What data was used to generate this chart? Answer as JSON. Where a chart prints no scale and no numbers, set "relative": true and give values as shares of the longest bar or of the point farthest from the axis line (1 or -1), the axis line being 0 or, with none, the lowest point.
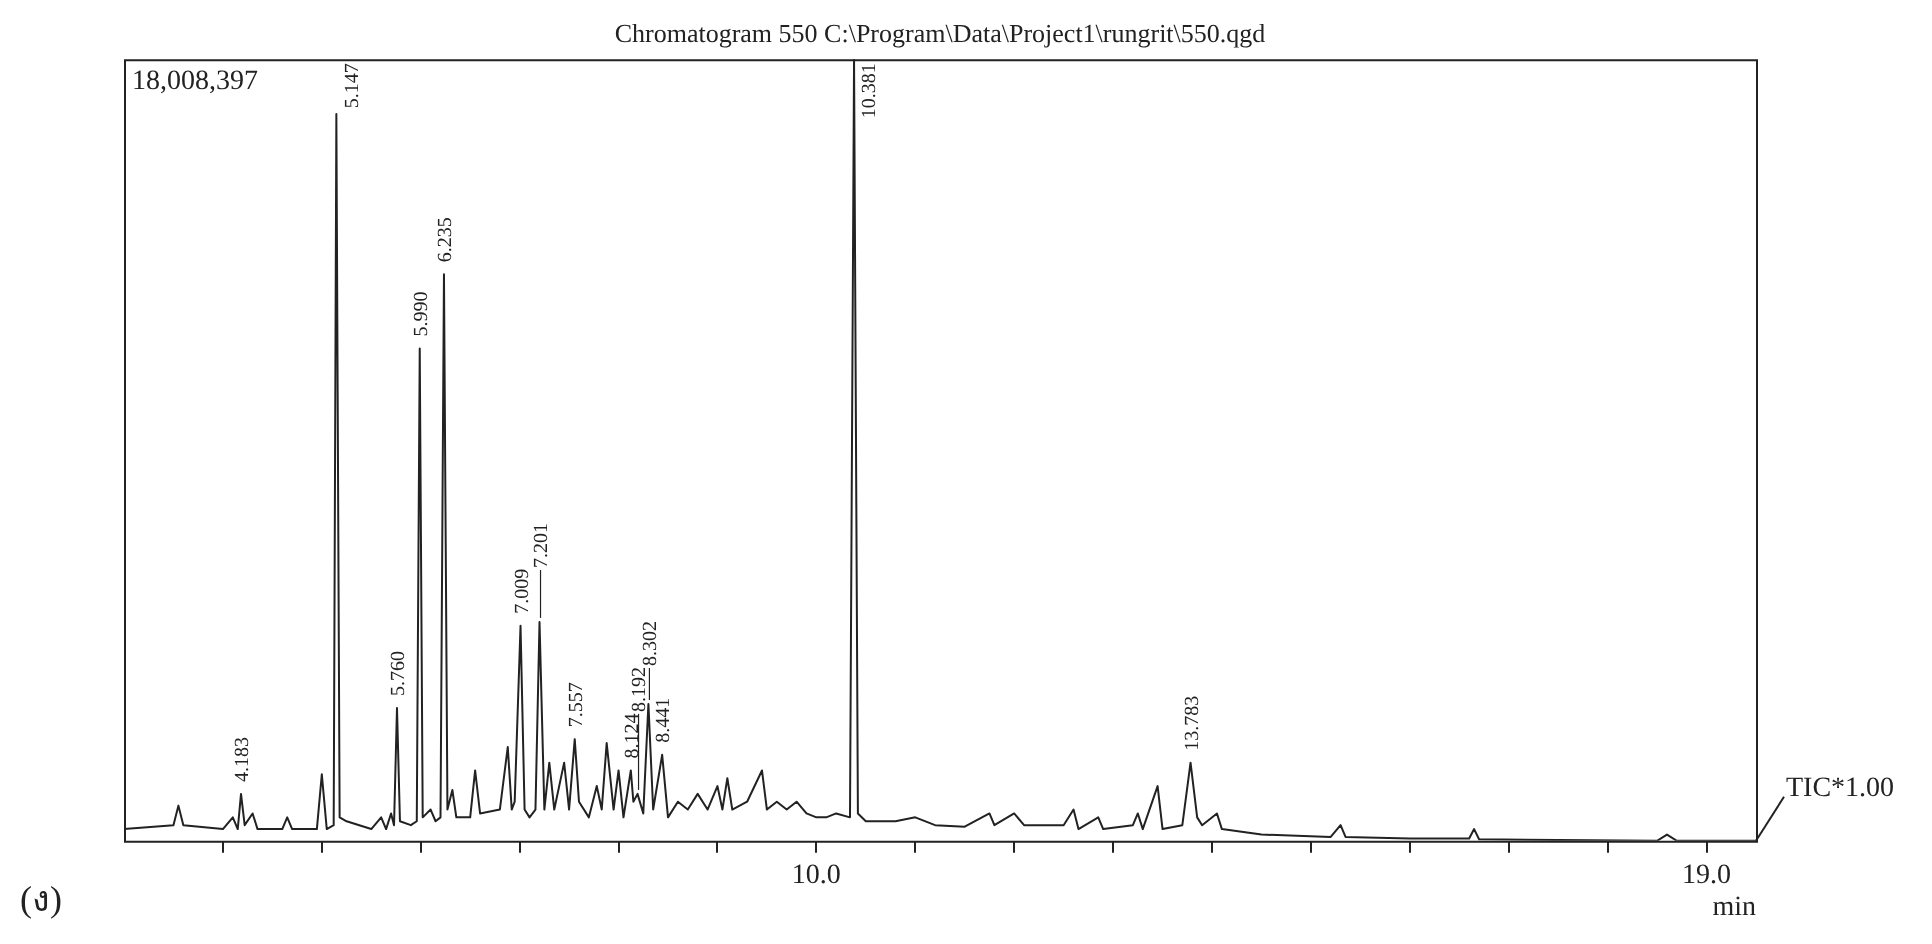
{
  "chart_data": {
    "type": "line",
    "title": "Chromatogram 550 C:\\Program\\Data\\Project1\\rungrit\\550.qgd",
    "xlabel": "min",
    "relative": true,
    "grid": false,
    "legend": false,
    "marker": "none",
    "line_style": "solid",
    "xlim": [
      3.0,
      19.5
    ],
    "xticks": [
      {
        "value": 4,
        "label": null
      },
      {
        "value": 5,
        "label": null
      },
      {
        "value": 6,
        "label": null
      },
      {
        "value": 7,
        "label": null
      },
      {
        "value": 8,
        "label": null
      },
      {
        "value": 9,
        "label": null
      },
      {
        "value": 10,
        "label": "10.0"
      },
      {
        "value": 11,
        "label": null
      },
      {
        "value": 12,
        "label": null
      },
      {
        "value": 13,
        "label": null
      },
      {
        "value": 14,
        "label": null
      },
      {
        "value": 15,
        "label": null
      },
      {
        "value": 16,
        "label": null
      },
      {
        "value": 17,
        "label": null
      },
      {
        "value": 18,
        "label": null
      },
      {
        "value": 19,
        "label": "19.0"
      }
    ],
    "series": [
      {
        "name": "TIC*1.00",
        "color": "#222222",
        "x": [
          3.0,
          3.5,
          3.55,
          3.6,
          4.0,
          4.1,
          4.15,
          4.183,
          4.22,
          4.3,
          4.35,
          4.6,
          4.65,
          4.7,
          4.95,
          5.0,
          5.05,
          5.12,
          5.147,
          5.18,
          5.25,
          5.5,
          5.6,
          5.65,
          5.7,
          5.73,
          5.76,
          5.79,
          5.9,
          5.96,
          5.99,
          6.02,
          6.1,
          6.15,
          6.2,
          6.235,
          6.27,
          6.32,
          6.36,
          6.5,
          6.55,
          6.6,
          6.8,
          6.88,
          6.92,
          6.95,
          7.009,
          7.05,
          7.1,
          7.16,
          7.201,
          7.25,
          7.3,
          7.35,
          7.45,
          7.5,
          7.557,
          7.6,
          7.7,
          7.78,
          7.83,
          7.88,
          7.95,
          8.0,
          8.05,
          8.124,
          8.15,
          8.192,
          8.25,
          8.302,
          8.35,
          8.441,
          8.5,
          8.6,
          8.7,
          8.8,
          8.9,
          9.0,
          9.05,
          9.1,
          9.15,
          9.3,
          9.45,
          9.5,
          9.6,
          9.7,
          9.8,
          9.9,
          10.0,
          10.1,
          10.2,
          10.34,
          10.381,
          10.42,
          10.5,
          10.8,
          11.0,
          11.2,
          11.5,
          11.75,
          11.8,
          12.0,
          12.1,
          12.5,
          12.6,
          12.65,
          12.85,
          12.9,
          13.2,
          13.25,
          13.3,
          13.45,
          13.5,
          13.7,
          13.783,
          13.85,
          13.9,
          14.05,
          14.1,
          14.5,
          15.2,
          15.3,
          15.35,
          16.0,
          16.6,
          16.65,
          16.7,
          17.5,
          18.5,
          18.6,
          18.7,
          19.5
        ],
        "values": [
          0.015,
          0.02,
          0.045,
          0.02,
          0.015,
          0.03,
          0.015,
          0.06,
          0.02,
          0.035,
          0.015,
          0.015,
          0.03,
          0.015,
          0.015,
          0.085,
          0.015,
          0.02,
          0.93,
          0.03,
          0.025,
          0.015,
          0.03,
          0.015,
          0.035,
          0.02,
          0.17,
          0.025,
          0.02,
          0.025,
          0.63,
          0.03,
          0.04,
          0.025,
          0.03,
          0.725,
          0.04,
          0.065,
          0.03,
          0.03,
          0.09,
          0.035,
          0.04,
          0.12,
          0.04,
          0.05,
          0.275,
          0.04,
          0.03,
          0.04,
          0.28,
          0.04,
          0.1,
          0.04,
          0.1,
          0.04,
          0.13,
          0.05,
          0.03,
          0.07,
          0.04,
          0.125,
          0.04,
          0.09,
          0.03,
          0.09,
          0.05,
          0.06,
          0.035,
          0.175,
          0.04,
          0.11,
          0.03,
          0.05,
          0.04,
          0.06,
          0.04,
          0.07,
          0.04,
          0.08,
          0.04,
          0.05,
          0.09,
          0.04,
          0.05,
          0.04,
          0.05,
          0.035,
          0.03,
          0.03,
          0.035,
          0.03,
          1.0,
          0.035,
          0.025,
          0.025,
          0.03,
          0.02,
          0.018,
          0.035,
          0.02,
          0.035,
          0.02,
          0.02,
          0.04,
          0.015,
          0.03,
          0.015,
          0.02,
          0.035,
          0.015,
          0.07,
          0.015,
          0.02,
          0.1,
          0.03,
          0.02,
          0.035,
          0.015,
          0.008,
          0.005,
          0.02,
          0.005,
          0.003,
          0.003,
          0.015,
          0.002,
          0.001,
          0.0,
          0.008,
          0.0,
          0.0
        ]
      }
    ],
    "annotations": [
      "18,008,397",
      "(ง)",
      {
        "text": "4.183",
        "x": 4.183,
        "y": 0.06
      },
      {
        "text": "5.147",
        "x": 5.147,
        "y": 0.93
      },
      {
        "text": "5.760",
        "x": 5.76,
        "y": 0.17
      },
      {
        "text": "5.990",
        "x": 5.99,
        "y": 0.63
      },
      {
        "text": "6.235",
        "x": 6.235,
        "y": 0.725
      },
      {
        "text": "7.009",
        "x": 7.009,
        "y": 0.275
      },
      {
        "text": "7.201",
        "x": 7.201,
        "y": 0.28
      },
      {
        "text": "7.557",
        "x": 7.557,
        "y": 0.13
      },
      {
        "text": "8.124",
        "x": 8.124,
        "y": 0.09
      },
      {
        "text": "8.192",
        "x": 8.192,
        "y": 0.06
      },
      {
        "text": "8.302",
        "x": 8.302,
        "y": 0.175
      },
      {
        "text": "8.441",
        "x": 8.441,
        "y": 0.11
      },
      {
        "text": "10.381",
        "x": 10.381,
        "y": 1.0
      },
      {
        "text": "13.783",
        "x": 13.783,
        "y": 0.1
      }
    ]
  }
}
